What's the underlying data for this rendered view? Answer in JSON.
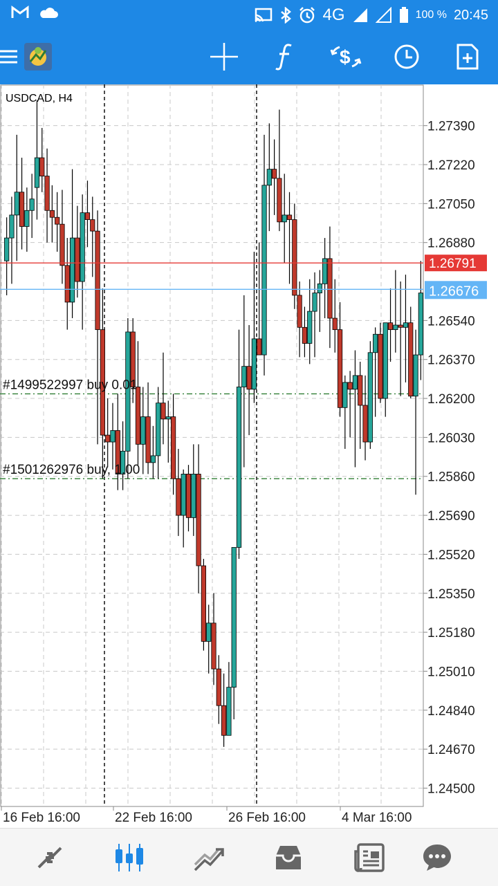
{
  "status_bar": {
    "network": "4G",
    "battery": "100 %",
    "time": "20:45",
    "icons": [
      "gmail-icon",
      "cloud-icon",
      "cast-icon",
      "bluetooth-icon",
      "alarm-icon",
      "signal-icon",
      "signal-empty-icon",
      "battery-icon"
    ]
  },
  "app_bar": {
    "buttons": [
      "menu-icon",
      "app-logo",
      "crosshair-icon",
      "function-icon",
      "trade-icon",
      "clock-icon",
      "new-order-icon"
    ]
  },
  "chart": {
    "symbol_label": "USDCAD, H4",
    "price_labels": [
      "1.27390",
      "1.27220",
      "1.27050",
      "1.26880",
      "1.26540",
      "1.26370",
      "1.26200",
      "1.26030",
      "1.25860",
      "1.25690",
      "1.25520",
      "1.25350",
      "1.25180",
      "1.25010",
      "1.24840",
      "1.24670",
      "1.24500"
    ],
    "ask_label": "1.26791",
    "bid_label": "1.26676",
    "date_labels": [
      "16 Feb 16:00",
      "22 Feb 16:00",
      "26 Feb 16:00",
      "4 Mar 16:00"
    ],
    "orders": [
      {
        "label": "#1499522997 buy 0.01",
        "price": 1.2622
      },
      {
        "label": "#1501262976 buy, 1.00",
        "price": 1.2585
      }
    ],
    "colors": {
      "bull": "#26a69a",
      "bear": "#c0392b",
      "ask": "#e53935",
      "bid": "#64b5f6",
      "order": "#2e7d32",
      "grid": "#c8c8c8"
    }
  },
  "chart_data": {
    "type": "candlestick",
    "symbol": "USDCAD",
    "timeframe": "H4",
    "ylim": [
      1.2442,
      1.2757
    ],
    "x_labels": [
      "16 Feb 16:00",
      "22 Feb 16:00",
      "26 Feb 16:00",
      "4 Mar 16:00"
    ],
    "candles": [
      [
        1.268,
        1.2699,
        1.2665,
        1.269
      ],
      [
        1.269,
        1.2708,
        1.267,
        1.27
      ],
      [
        1.27,
        1.2735,
        1.268,
        1.271
      ],
      [
        1.271,
        1.2725,
        1.2685,
        1.2695
      ],
      [
        1.2695,
        1.2712,
        1.2684,
        1.2702
      ],
      [
        1.2702,
        1.2718,
        1.269,
        1.2707
      ],
      [
        1.2712,
        1.275,
        1.2698,
        1.2725
      ],
      [
        1.2725,
        1.2738,
        1.271,
        1.2717
      ],
      [
        1.2717,
        1.2729,
        1.2688,
        1.2702
      ],
      [
        1.2702,
        1.2713,
        1.2688,
        1.2699
      ],
      [
        1.2699,
        1.271,
        1.2684,
        1.2696
      ],
      [
        1.2696,
        1.2711,
        1.267,
        1.2678
      ],
      [
        1.2678,
        1.269,
        1.265,
        1.2662
      ],
      [
        1.2662,
        1.272,
        1.2655,
        1.269
      ],
      [
        1.269,
        1.2704,
        1.2664,
        1.2671
      ],
      [
        1.2671,
        1.2709,
        1.265,
        1.2701
      ],
      [
        1.2701,
        1.2715,
        1.2686,
        1.2698
      ],
      [
        1.2698,
        1.2708,
        1.2673,
        1.2693
      ],
      [
        1.2693,
        1.2702,
        1.26,
        1.265
      ],
      [
        1.265,
        1.2668,
        1.2585,
        1.2604
      ],
      [
        1.2604,
        1.262,
        1.259,
        1.2601
      ],
      [
        1.2601,
        1.2618,
        1.2589,
        1.2606
      ],
      [
        1.2606,
        1.2622,
        1.258,
        1.2587
      ],
      [
        1.2587,
        1.261,
        1.258,
        1.2597
      ],
      [
        1.2597,
        1.2655,
        1.2585,
        1.2649
      ],
      [
        1.2649,
        1.2655,
        1.2618,
        1.2625
      ],
      [
        1.2625,
        1.2645,
        1.2591,
        1.26
      ],
      [
        1.26,
        1.2625,
        1.2587,
        1.2612
      ],
      [
        1.2612,
        1.2627,
        1.2587,
        1.2592
      ],
      [
        1.2592,
        1.2608,
        1.2585,
        1.2595
      ],
      [
        1.2595,
        1.2625,
        1.2585,
        1.2618
      ],
      [
        1.2618,
        1.264,
        1.26,
        1.2611
      ],
      [
        1.2611,
        1.2619,
        1.2592,
        1.2612
      ],
      [
        1.2612,
        1.2622,
        1.2578,
        1.2585
      ],
      [
        1.2585,
        1.2598,
        1.256,
        1.2569
      ],
      [
        1.2569,
        1.2589,
        1.2555,
        1.2587
      ],
      [
        1.2587,
        1.2591,
        1.2562,
        1.2568
      ],
      [
        1.2568,
        1.26,
        1.256,
        1.2587
      ],
      [
        1.2587,
        1.26,
        1.2535,
        1.2547
      ],
      [
        1.2547,
        1.255,
        1.251,
        1.2514
      ],
      [
        1.2514,
        1.253,
        1.25,
        1.2522
      ],
      [
        1.2522,
        1.2535,
        1.2495,
        1.2502
      ],
      [
        1.2502,
        1.2508,
        1.2478,
        1.2486
      ],
      [
        1.2486,
        1.25,
        1.2468,
        1.2473
      ],
      [
        1.2473,
        1.2505,
        1.2475,
        1.2494
      ],
      [
        1.2494,
        1.2555,
        1.248,
        1.2555
      ],
      [
        1.2555,
        1.265,
        1.255,
        1.2625
      ],
      [
        1.2625,
        1.2665,
        1.259,
        1.2634
      ],
      [
        1.2634,
        1.2652,
        1.2604,
        1.2624
      ],
      [
        1.2624,
        1.2684,
        1.2618,
        1.2646
      ],
      [
        1.2646,
        1.2688,
        1.264,
        1.2639
      ],
      [
        1.2639,
        1.2735,
        1.263,
        1.2713
      ],
      [
        1.2713,
        1.274,
        1.2693,
        1.272
      ],
      [
        1.272,
        1.2733,
        1.27,
        1.2716
      ],
      [
        1.2716,
        1.2746,
        1.2693,
        1.2697
      ],
      [
        1.2697,
        1.2718,
        1.2679,
        1.27
      ],
      [
        1.27,
        1.271,
        1.267,
        1.2698
      ],
      [
        1.2698,
        1.2705,
        1.2659,
        1.2665
      ],
      [
        1.2665,
        1.2671,
        1.2638,
        1.2651
      ],
      [
        1.2651,
        1.266,
        1.2638,
        1.2644
      ],
      [
        1.2644,
        1.2672,
        1.2635,
        1.2658
      ],
      [
        1.2658,
        1.2675,
        1.2638,
        1.2666
      ],
      [
        1.2666,
        1.2676,
        1.2649,
        1.267
      ],
      [
        1.267,
        1.269,
        1.2655,
        1.2681
      ],
      [
        1.2681,
        1.2695,
        1.2642,
        1.2655
      ],
      [
        1.2655,
        1.2672,
        1.264,
        1.265
      ],
      [
        1.265,
        1.2662,
        1.2612,
        1.2616
      ],
      [
        1.2616,
        1.263,
        1.2598,
        1.2627
      ],
      [
        1.2627,
        1.2632,
        1.2603,
        1.2624
      ],
      [
        1.2624,
        1.2641,
        1.259,
        1.263
      ],
      [
        1.263,
        1.2636,
        1.2598,
        1.2617
      ],
      [
        1.2617,
        1.263,
        1.2593,
        1.2601
      ],
      [
        1.2601,
        1.2645,
        1.2598,
        1.264
      ],
      [
        1.264,
        1.2651,
        1.2612,
        1.2648
      ],
      [
        1.2648,
        1.2653,
        1.2618,
        1.262
      ],
      [
        1.262,
        1.2652,
        1.2612,
        1.2653
      ],
      [
        1.2653,
        1.2668,
        1.2636,
        1.265
      ],
      [
        1.265,
        1.2676,
        1.264,
        1.2652
      ],
      [
        1.2652,
        1.2671,
        1.2621,
        1.2651
      ],
      [
        1.2651,
        1.2674,
        1.2627,
        1.2653
      ],
      [
        1.2653,
        1.266,
        1.262,
        1.2621
      ],
      [
        1.2621,
        1.265,
        1.2578,
        1.2639
      ],
      [
        1.2639,
        1.268,
        1.2628,
        1.2666
      ]
    ],
    "ask": 1.26791,
    "bid": 1.26676,
    "period_separators": [
      "16 Feb 16:00 + 6 bars",
      "26 Feb 16:00"
    ]
  },
  "bottom_nav": {
    "items": [
      "quotes-icon",
      "chart-icon",
      "trade-icon",
      "history-icon",
      "news-icon",
      "chat-icon"
    ],
    "active_index": 1
  }
}
